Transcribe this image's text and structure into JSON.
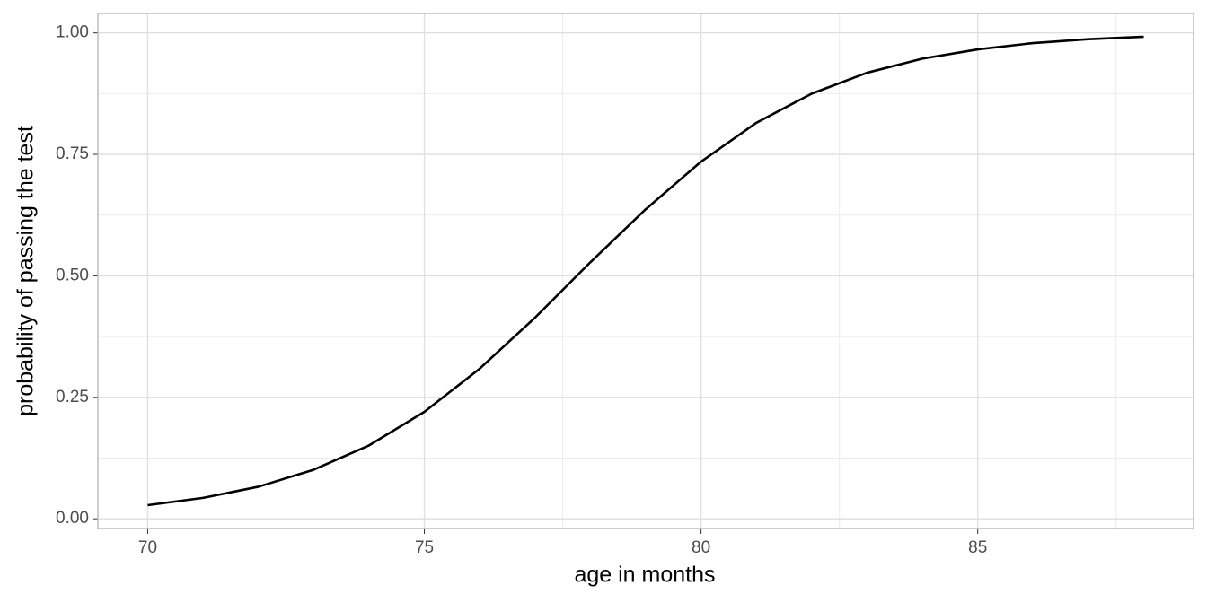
{
  "chart_data": {
    "type": "line",
    "x_label": "age in months",
    "y_label": "probability of passing the test",
    "x": [
      70,
      71,
      72,
      73,
      74,
      75,
      76,
      77,
      78,
      79,
      80,
      81,
      82,
      83,
      84,
      85,
      86,
      87,
      88
    ],
    "series": [
      {
        "color": "#000000",
        "values": [
          0.028,
          0.043,
          0.066,
          0.101,
          0.151,
          0.22,
          0.309,
          0.414,
          0.528,
          0.637,
          0.735,
          0.815,
          0.875,
          0.918,
          0.947,
          0.966,
          0.979,
          0.987,
          0.992
        ]
      }
    ],
    "xlim": [
      69.1,
      88.9
    ],
    "xticks": [
      70,
      75,
      80,
      85
    ],
    "x_minor_grid": [
      72.5,
      77.5,
      82.5,
      87.5
    ],
    "ylim": [
      -0.02,
      1.04
    ],
    "yticks": [
      {
        "value": 0,
        "label": "0.00"
      },
      {
        "value": 0.25,
        "label": "0.25"
      },
      {
        "value": 0.5,
        "label": "0.50"
      },
      {
        "value": 0.75,
        "label": "0.75"
      },
      {
        "value": 1,
        "label": "1.00"
      }
    ],
    "y_minor_grid": [
      0.125,
      0.375,
      0.625,
      0.875
    ],
    "grid": true
  }
}
